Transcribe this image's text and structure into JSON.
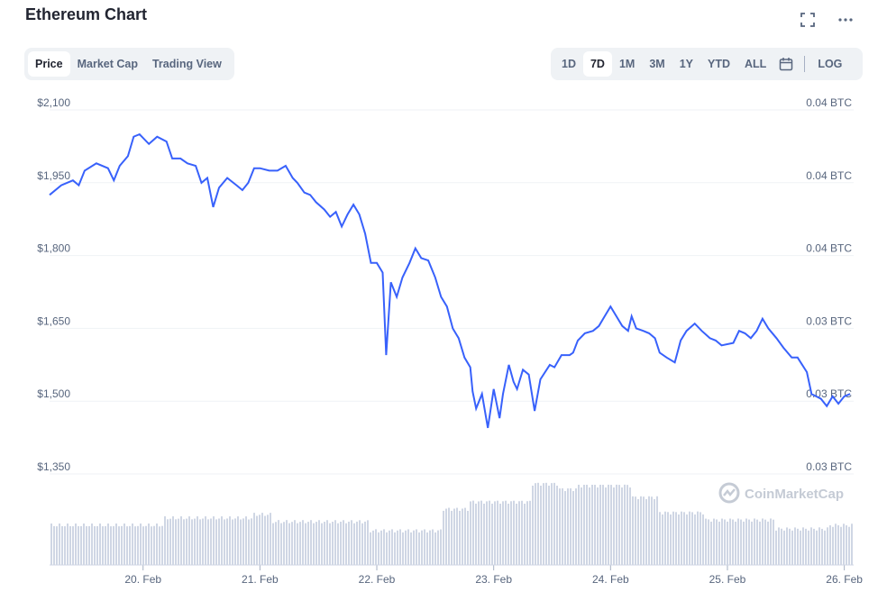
{
  "header": {
    "title": "Ethereum Chart"
  },
  "tabs_left": [
    {
      "label": "Price",
      "active": true
    },
    {
      "label": "Market Cap",
      "active": false
    },
    {
      "label": "Trading View",
      "active": false
    }
  ],
  "tabs_right": [
    {
      "label": "1D",
      "active": false
    },
    {
      "label": "7D",
      "active": true
    },
    {
      "label": "1M",
      "active": false
    },
    {
      "label": "3M",
      "active": false
    },
    {
      "label": "1Y",
      "active": false
    },
    {
      "label": "YTD",
      "active": false
    },
    {
      "label": "ALL",
      "active": false
    }
  ],
  "log_label": "LOG",
  "icons": [
    "fullscreen-icon",
    "more-icon",
    "calendar-icon"
  ],
  "watermark": "CoinMarketCap",
  "colors": {
    "line": "#3861fb",
    "volume": "#cfd6e4",
    "grid": "#eff2f5",
    "axis_text": "#58667e"
  },
  "chart_data": {
    "type": "line",
    "title": "",
    "x_ticks": [
      "20. Feb",
      "21. Feb",
      "22. Feb",
      "23. Feb",
      "24. Feb",
      "25. Feb",
      "26. Feb"
    ],
    "y_ticks_left": [
      "$2,100",
      "$1,950",
      "$1,800",
      "$1,650",
      "$1,500",
      "$1,350"
    ],
    "y_ticks_right": [
      "0.04 BTC",
      "0.04 BTC",
      "0.04 BTC",
      "0.03 BTC",
      "0.03 BTC",
      "0.03 BTC"
    ],
    "ylim": [
      1350,
      2100
    ],
    "x_range_days": [
      19.2,
      26.08
    ],
    "series": [
      {
        "values": [
          [
            19.2,
            1910
          ],
          [
            19.3,
            1930
          ],
          [
            19.4,
            1940
          ],
          [
            19.45,
            1930
          ],
          [
            19.5,
            1960
          ],
          [
            19.6,
            1975
          ],
          [
            19.7,
            1965
          ],
          [
            19.75,
            1940
          ],
          [
            19.8,
            1970
          ],
          [
            19.87,
            1990
          ],
          [
            19.92,
            2030
          ],
          [
            19.97,
            2035
          ],
          [
            20.05,
            2015
          ],
          [
            20.12,
            2030
          ],
          [
            20.2,
            2020
          ],
          [
            20.25,
            1985
          ],
          [
            20.32,
            1985
          ],
          [
            20.38,
            1975
          ],
          [
            20.45,
            1970
          ],
          [
            20.5,
            1935
          ],
          [
            20.55,
            1945
          ],
          [
            20.6,
            1885
          ],
          [
            20.65,
            1925
          ],
          [
            20.72,
            1945
          ],
          [
            20.8,
            1930
          ],
          [
            20.85,
            1920
          ],
          [
            20.9,
            1935
          ],
          [
            20.95,
            1965
          ],
          [
            21.0,
            1965
          ],
          [
            21.08,
            1960
          ],
          [
            21.15,
            1960
          ],
          [
            21.22,
            1970
          ],
          [
            21.28,
            1945
          ],
          [
            21.32,
            1935
          ],
          [
            21.38,
            1915
          ],
          [
            21.43,
            1910
          ],
          [
            21.48,
            1895
          ],
          [
            21.55,
            1880
          ],
          [
            21.6,
            1865
          ],
          [
            21.65,
            1875
          ],
          [
            21.7,
            1845
          ],
          [
            21.75,
            1870
          ],
          [
            21.8,
            1890
          ],
          [
            21.85,
            1870
          ],
          [
            21.9,
            1830
          ],
          [
            21.95,
            1770
          ],
          [
            22.0,
            1770
          ],
          [
            22.05,
            1750
          ],
          [
            22.08,
            1580
          ],
          [
            22.12,
            1730
          ],
          [
            22.17,
            1700
          ],
          [
            22.22,
            1740
          ],
          [
            22.28,
            1770
          ],
          [
            22.33,
            1800
          ],
          [
            22.38,
            1780
          ],
          [
            22.44,
            1775
          ],
          [
            22.5,
            1740
          ],
          [
            22.55,
            1700
          ],
          [
            22.6,
            1680
          ],
          [
            22.65,
            1635
          ],
          [
            22.7,
            1615
          ],
          [
            22.75,
            1575
          ],
          [
            22.8,
            1555
          ],
          [
            22.82,
            1505
          ],
          [
            22.85,
            1470
          ],
          [
            22.9,
            1500
          ],
          [
            22.95,
            1430
          ],
          [
            23.0,
            1510
          ],
          [
            23.05,
            1450
          ],
          [
            23.08,
            1500
          ],
          [
            23.13,
            1560
          ],
          [
            23.17,
            1525
          ],
          [
            23.2,
            1510
          ],
          [
            23.25,
            1550
          ],
          [
            23.3,
            1540
          ],
          [
            23.35,
            1465
          ],
          [
            23.4,
            1530
          ],
          [
            23.48,
            1560
          ],
          [
            23.52,
            1555
          ],
          [
            23.58,
            1580
          ],
          [
            23.65,
            1580
          ],
          [
            23.68,
            1585
          ],
          [
            23.72,
            1610
          ],
          [
            23.78,
            1625
          ],
          [
            23.85,
            1630
          ],
          [
            23.9,
            1640
          ],
          [
            23.95,
            1660
          ],
          [
            24.0,
            1680
          ],
          [
            24.05,
            1660
          ],
          [
            24.1,
            1640
          ],
          [
            24.15,
            1630
          ],
          [
            24.18,
            1660
          ],
          [
            24.22,
            1635
          ],
          [
            24.28,
            1630
          ],
          [
            24.33,
            1625
          ],
          [
            24.38,
            1615
          ],
          [
            24.42,
            1585
          ],
          [
            24.48,
            1575
          ],
          [
            24.55,
            1565
          ],
          [
            24.6,
            1610
          ],
          [
            24.65,
            1630
          ],
          [
            24.72,
            1645
          ],
          [
            24.78,
            1630
          ],
          [
            24.85,
            1615
          ],
          [
            24.9,
            1610
          ],
          [
            24.95,
            1600
          ],
          [
            25.05,
            1605
          ],
          [
            25.1,
            1630
          ],
          [
            25.15,
            1625
          ],
          [
            25.2,
            1615
          ],
          [
            25.25,
            1630
          ],
          [
            25.3,
            1655
          ],
          [
            25.35,
            1635
          ],
          [
            25.42,
            1615
          ],
          [
            25.48,
            1595
          ],
          [
            25.55,
            1575
          ],
          [
            25.6,
            1575
          ],
          [
            25.68,
            1545
          ],
          [
            25.72,
            1500
          ],
          [
            25.8,
            1490
          ],
          [
            25.85,
            1475
          ],
          [
            25.9,
            1495
          ],
          [
            25.95,
            1480
          ],
          [
            26.0,
            1495
          ],
          [
            26.05,
            1500
          ]
        ]
      }
    ],
    "volume_series": "shown as bars below price line"
  }
}
